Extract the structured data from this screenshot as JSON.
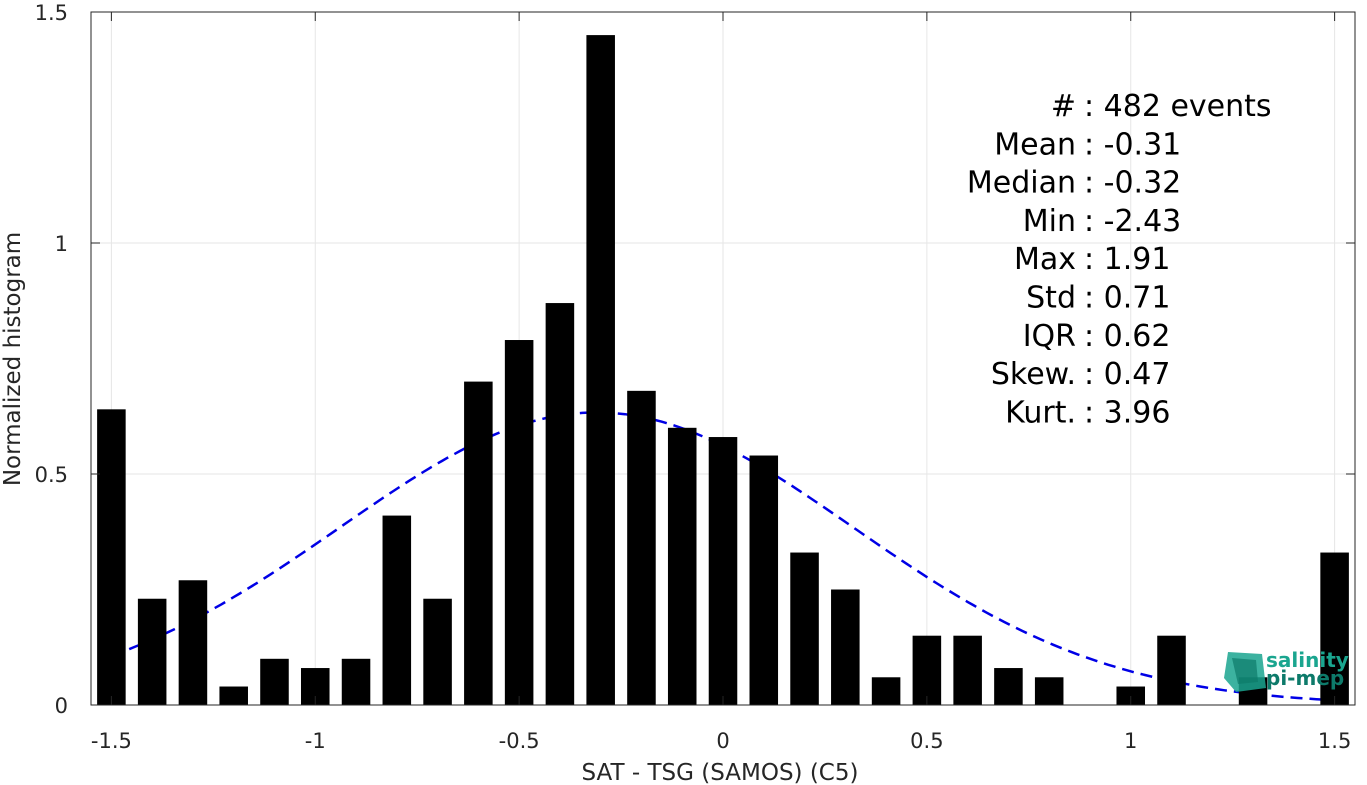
{
  "chart_data": {
    "type": "bar",
    "xlabel": "SAT - TSG (SAMOS) (C5)",
    "ylabel": "Normalized histogram",
    "xlim": [
      -1.55,
      1.55
    ],
    "ylim": [
      0,
      1.5
    ],
    "xticks": [
      -1.5,
      -1,
      -0.5,
      0,
      0.5,
      1,
      1.5
    ],
    "xtick_labels": [
      "-1.5",
      "-1",
      "-0.5",
      "0",
      "0.5",
      "1",
      "1.5"
    ],
    "yticks": [
      0,
      0.5,
      1,
      1.5
    ],
    "ytick_labels": [
      "0",
      "0.5",
      "1",
      "1.5"
    ],
    "grid": true,
    "bar_width": 0.07,
    "x": [
      -1.5,
      -1.4,
      -1.3,
      -1.2,
      -1.1,
      -1.0,
      -0.9,
      -0.8,
      -0.7,
      -0.6,
      -0.5,
      -0.4,
      -0.3,
      -0.2,
      -0.1,
      0.0,
      0.1,
      0.2,
      0.3,
      0.4,
      0.5,
      0.6,
      0.7,
      0.8,
      0.9,
      1.0,
      1.1,
      1.2,
      1.3,
      1.4,
      1.5
    ],
    "values": [
      0.64,
      0.23,
      0.27,
      0.04,
      0.1,
      0.08,
      0.1,
      0.41,
      0.23,
      0.7,
      0.79,
      0.87,
      1.45,
      0.68,
      0.6,
      0.58,
      0.54,
      0.33,
      0.25,
      0.06,
      0.15,
      0.15,
      0.08,
      0.06,
      0.0,
      0.04,
      0.15,
      0.0,
      0.06,
      0.0,
      0.33
    ],
    "fit": {
      "type": "gaussian",
      "mean": -0.31,
      "std": 0.63,
      "style": "dashed",
      "color": "#0000e6"
    },
    "bar_color": "#000000",
    "stats": [
      {
        "label": "#  ",
        "value": "482 events"
      },
      {
        "label": "Mean",
        "value": "-0.31"
      },
      {
        "label": "Median",
        "value": "-0.32"
      },
      {
        "label": "Min",
        "value": "-2.43"
      },
      {
        "label": "Max",
        "value": "1.91"
      },
      {
        "label": "Std",
        "value": "0.71"
      },
      {
        "label": "IQR",
        "value": "0.62"
      },
      {
        "label": "Skew.",
        "value": "0.47"
      },
      {
        "label": "Kurt.",
        "value": "3.96"
      }
    ]
  },
  "logo": {
    "line1": "salinity",
    "line2": "pi-mep",
    "color": "#1aa58f"
  }
}
